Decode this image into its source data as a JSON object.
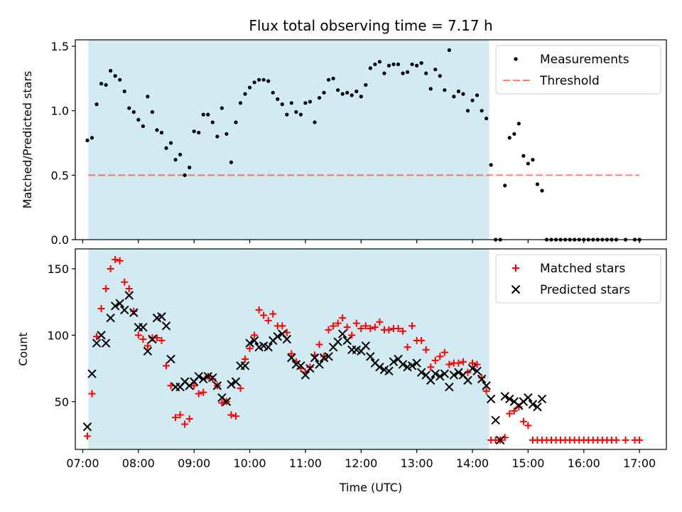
{
  "title": "Flux total observing time = 7.17 h",
  "colors": {
    "shade": "#add8e6",
    "threshold": "#ff0000",
    "measurements": "#000000",
    "matched": "#ff0000",
    "predicted": "#000000"
  },
  "chart_data": [
    {
      "type": "scatter",
      "ylabel": "Matched/Predicted stars",
      "ylim": [
        0,
        1.55
      ],
      "xlim": [
        "06:52",
        "17:29"
      ],
      "yticks": [
        "0.0",
        "0.5",
        "1.0",
        "1.5"
      ],
      "shaded_interval": [
        "07:06",
        "14:18"
      ],
      "legend_position": "upper right",
      "legend": [
        "Measurements",
        "Threshold"
      ],
      "threshold": {
        "name": "Threshold",
        "start": "07:06",
        "end": "17:00",
        "value": 0.5
      },
      "series": [
        {
          "name": "Measurements",
          "marker": "dot",
          "x": [
            "07:05",
            "07:10",
            "07:15",
            "07:20",
            "07:25",
            "07:30",
            "07:35",
            "07:40",
            "07:45",
            "07:50",
            "07:55",
            "08:00",
            "08:05",
            "08:10",
            "08:15",
            "08:20",
            "08:25",
            "08:30",
            "08:35",
            "08:40",
            "08:45",
            "08:50",
            "08:55",
            "09:00",
            "09:05",
            "09:10",
            "09:15",
            "09:20",
            "09:25",
            "09:30",
            "09:35",
            "09:40",
            "09:45",
            "09:50",
            "09:55",
            "10:00",
            "10:05",
            "10:10",
            "10:15",
            "10:20",
            "10:25",
            "10:30",
            "10:35",
            "10:40",
            "10:45",
            "10:50",
            "10:55",
            "11:00",
            "11:05",
            "11:10",
            "11:15",
            "11:20",
            "11:25",
            "11:30",
            "11:35",
            "11:40",
            "11:45",
            "11:50",
            "11:55",
            "12:00",
            "12:05",
            "12:10",
            "12:15",
            "12:20",
            "12:25",
            "12:30",
            "12:35",
            "12:40",
            "12:45",
            "12:50",
            "12:55",
            "13:00",
            "13:05",
            "13:10",
            "13:15",
            "13:20",
            "13:25",
            "13:30",
            "13:35",
            "13:40",
            "13:45",
            "13:50",
            "13:55",
            "14:00",
            "14:05",
            "14:10",
            "14:15",
            "14:20",
            "14:25",
            "14:30",
            "14:35",
            "14:40",
            "14:45",
            "14:50",
            "14:55",
            "15:00",
            "15:05",
            "15:10",
            "15:15",
            "15:20",
            "15:25",
            "15:30",
            "15:35",
            "15:40",
            "15:45",
            "15:50",
            "15:55",
            "16:00",
            "16:05",
            "16:10",
            "16:15",
            "16:20",
            "16:25",
            "16:30",
            "16:35",
            "16:45",
            "16:55",
            "17:00"
          ],
          "y": [
            0.77,
            0.79,
            1.05,
            1.21,
            1.2,
            1.31,
            1.27,
            1.24,
            1.15,
            1.02,
            0.99,
            0.93,
            0.88,
            1.11,
            0.99,
            0.85,
            0.83,
            0.71,
            0.75,
            0.62,
            0.66,
            0.5,
            0.56,
            0.84,
            0.83,
            0.97,
            0.97,
            0.91,
            0.8,
            1.02,
            0.82,
            0.6,
            0.91,
            1.06,
            1.13,
            1.18,
            1.22,
            1.24,
            1.24,
            1.23,
            1.14,
            1.09,
            1.05,
            0.97,
            1.06,
            0.99,
            0.97,
            1.06,
            1.07,
            0.91,
            1.1,
            1.14,
            1.24,
            1.25,
            1.16,
            1.13,
            1.14,
            1.12,
            1.15,
            1.11,
            1.2,
            1.33,
            1.36,
            1.38,
            1.29,
            1.35,
            1.36,
            1.36,
            1.29,
            1.3,
            1.36,
            1.35,
            1.37,
            1.29,
            1.17,
            1.32,
            1.27,
            1.16,
            1.47,
            1.11,
            1.15,
            1.13,
            1.0,
            1.08,
            1.12,
            1.0,
            0.94,
            0.58,
            0.0,
            0.0,
            0.42,
            0.79,
            0.82,
            0.9,
            0.65,
            0.59,
            0.62,
            0.43,
            0.38,
            0.0,
            0.0,
            0.0,
            0.0,
            0.0,
            0.0,
            0.0,
            0.0,
            0.0,
            0.0,
            0.0,
            0.0,
            0.0,
            0.0,
            0.0,
            0.0,
            0.0,
            0.0,
            0.0
          ]
        }
      ]
    },
    {
      "type": "scatter",
      "xlabel": "Time (UTC)",
      "ylabel": "Count",
      "ylim": [
        14,
        165
      ],
      "xlim": [
        "06:52",
        "17:29"
      ],
      "yticks": [
        "50",
        "100",
        "150"
      ],
      "xticks": [
        "07:00",
        "08:00",
        "09:00",
        "10:00",
        "11:00",
        "12:00",
        "13:00",
        "14:00",
        "15:00",
        "16:00",
        "17:00"
      ],
      "shaded_interval": [
        "07:06",
        "14:18"
      ],
      "legend_position": "upper right",
      "legend": [
        "Matched stars",
        "Predicted stars"
      ],
      "series": [
        {
          "name": "Matched stars",
          "marker": "plus",
          "x": [
            "07:05",
            "07:10",
            "07:15",
            "07:20",
            "07:25",
            "07:30",
            "07:35",
            "07:40",
            "07:45",
            "07:50",
            "07:55",
            "08:00",
            "08:05",
            "08:10",
            "08:15",
            "08:20",
            "08:25",
            "08:30",
            "08:35",
            "08:40",
            "08:45",
            "08:50",
            "08:55",
            "09:00",
            "09:05",
            "09:10",
            "09:15",
            "09:20",
            "09:25",
            "09:30",
            "09:35",
            "09:40",
            "09:45",
            "09:50",
            "09:55",
            "10:00",
            "10:05",
            "10:10",
            "10:15",
            "10:20",
            "10:25",
            "10:30",
            "10:35",
            "10:40",
            "10:45",
            "10:50",
            "10:55",
            "11:00",
            "11:05",
            "11:10",
            "11:15",
            "11:20",
            "11:25",
            "11:30",
            "11:35",
            "11:40",
            "11:45",
            "11:50",
            "11:55",
            "12:00",
            "12:05",
            "12:10",
            "12:15",
            "12:20",
            "12:25",
            "12:30",
            "12:35",
            "12:40",
            "12:45",
            "12:50",
            "12:55",
            "13:00",
            "13:05",
            "13:10",
            "13:15",
            "13:20",
            "13:25",
            "13:30",
            "13:35",
            "13:40",
            "13:45",
            "13:50",
            "13:55",
            "14:00",
            "14:05",
            "14:10",
            "14:15",
            "14:20",
            "14:25",
            "14:30",
            "14:35",
            "14:40",
            "14:45",
            "14:50",
            "14:55",
            "15:00",
            "15:05",
            "15:10",
            "15:15",
            "15:20",
            "15:25",
            "15:30",
            "15:35",
            "15:40",
            "15:45",
            "15:50",
            "15:55",
            "16:00",
            "16:05",
            "16:10",
            "16:15",
            "16:20",
            "16:25",
            "16:30",
            "16:35",
            "16:45",
            "16:55",
            "17:00"
          ],
          "y": [
            24,
            56,
            99,
            120,
            135,
            150,
            157,
            156,
            140,
            135,
            118,
            100,
            97,
            92,
            98,
            98,
            96,
            77,
            62,
            38,
            40,
            33,
            37,
            62,
            56,
            57,
            69,
            67,
            62,
            49,
            50,
            40,
            39,
            60,
            82,
            90,
            100,
            119,
            115,
            111,
            116,
            107,
            107,
            102,
            86,
            80,
            75,
            72,
            76,
            85,
            93,
            84,
            104,
            107,
            109,
            113,
            106,
            100,
            109,
            105,
            107,
            105,
            106,
            110,
            104,
            104,
            105,
            105,
            103,
            91,
            107,
            96,
            96,
            89,
            76,
            81,
            84,
            87,
            78,
            79,
            79,
            80,
            72,
            79,
            78,
            68,
            58,
            21,
            21,
            21,
            23,
            41,
            43,
            46,
            35,
            32,
            21,
            21,
            21,
            21,
            21,
            21,
            21,
            21,
            21,
            21,
            21,
            21,
            21,
            21,
            21,
            21,
            21,
            21,
            21,
            21,
            21,
            21
          ]
        },
        {
          "name": "Predicted stars",
          "marker": "x",
          "x": [
            "07:05",
            "07:10",
            "07:15",
            "07:20",
            "07:25",
            "07:30",
            "07:35",
            "07:40",
            "07:45",
            "07:50",
            "07:55",
            "08:00",
            "08:05",
            "08:10",
            "08:15",
            "08:20",
            "08:25",
            "08:30",
            "08:35",
            "08:40",
            "08:45",
            "08:50",
            "08:55",
            "09:00",
            "09:05",
            "09:10",
            "09:15",
            "09:20",
            "09:25",
            "09:30",
            "09:35",
            "09:40",
            "09:45",
            "09:50",
            "09:55",
            "10:00",
            "10:05",
            "10:10",
            "10:15",
            "10:20",
            "10:25",
            "10:30",
            "10:35",
            "10:40",
            "10:45",
            "10:50",
            "10:55",
            "11:00",
            "11:05",
            "11:10",
            "11:15",
            "11:20",
            "11:25",
            "11:30",
            "11:35",
            "11:40",
            "11:45",
            "11:50",
            "11:55",
            "12:00",
            "12:05",
            "12:10",
            "12:15",
            "12:20",
            "12:25",
            "12:30",
            "12:35",
            "12:40",
            "12:45",
            "12:50",
            "12:55",
            "13:00",
            "13:05",
            "13:10",
            "13:15",
            "13:20",
            "13:25",
            "13:30",
            "13:35",
            "13:40",
            "13:45",
            "13:50",
            "13:55",
            "14:00",
            "14:05",
            "14:10",
            "14:15",
            "14:20",
            "14:25",
            "14:30",
            "14:35",
            "14:40",
            "14:45",
            "14:50",
            "14:55",
            "15:00",
            "15:05",
            "15:10",
            "15:15"
          ],
          "y": [
            31,
            71,
            94,
            100,
            94,
            113,
            122,
            124,
            119,
            130,
            117,
            106,
            106,
            88,
            97,
            113,
            114,
            107,
            82,
            61,
            61,
            65,
            62,
            65,
            69,
            67,
            69,
            68,
            62,
            53,
            50,
            63,
            65,
            77,
            77,
            94,
            96,
            91,
            92,
            91,
            96,
            99,
            101,
            97,
            83,
            78,
            77,
            70,
            75,
            83,
            78,
            83,
            84,
            91,
            95,
            101,
            96,
            89,
            89,
            88,
            92,
            84,
            79,
            76,
            74,
            73,
            80,
            82,
            78,
            76,
            77,
            79,
            72,
            70,
            66,
            71,
            69,
            71,
            61,
            70,
            72,
            70,
            66,
            75,
            73,
            67,
            62,
            52,
            36,
            21,
            54,
            52,
            50,
            47,
            50,
            53,
            48,
            46,
            52
          ]
        }
      ]
    }
  ]
}
